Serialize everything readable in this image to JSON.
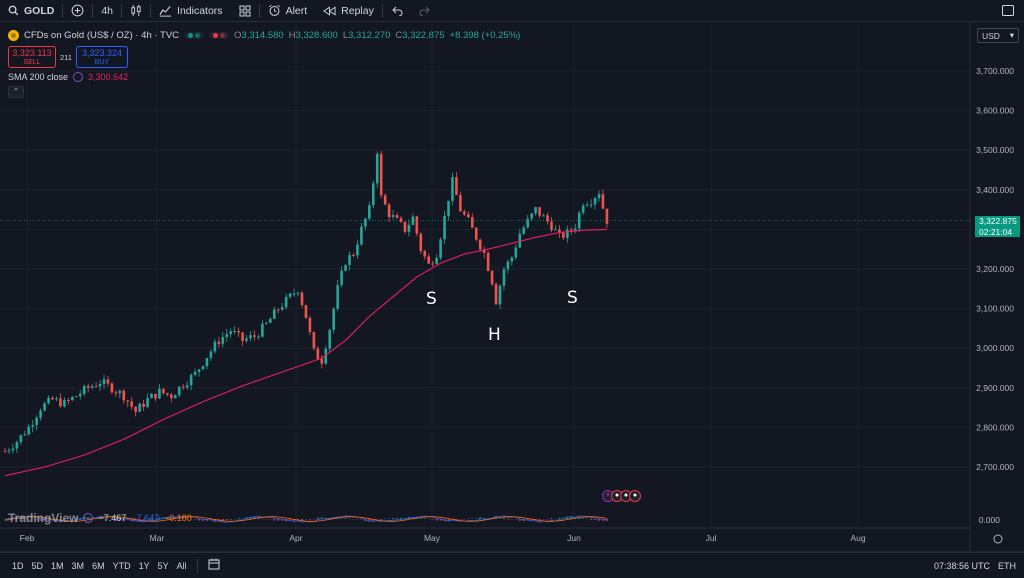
{
  "topbar": {
    "symbol": "GOLD",
    "interval": "4h",
    "indicators_label": "Indicators",
    "alert_label": "Alert",
    "replay_label": "Replay"
  },
  "legend": {
    "title": "CFDs on Gold (US$ / OZ) · 4h · TVC",
    "open_k": "O",
    "open_v": "3,314.580",
    "high_k": "H",
    "high_v": "3,328.600",
    "low_k": "L",
    "low_v": "3,312.270",
    "close_k": "C",
    "close_v": "3,322.875",
    "change": "+8.398 (+0.25%)",
    "sell_price": "3,323.113",
    "sell_label": "SELL",
    "spread": "211",
    "buy_price": "3,323.324",
    "buy_label": "BUY",
    "sma_label": "SMA 200 close",
    "sma_value": "3,300.642"
  },
  "currency": "USD",
  "price_label": {
    "price": "3,322.875",
    "countdown": "02:21:04"
  },
  "annotations": {
    "left_shoulder": "S",
    "head": "H",
    "right_shoulder": "S"
  },
  "oscillator": {
    "watermark": "TradingView",
    "v1": "−7.467",
    "v2": "−7.647",
    "v3": "−0.180",
    "colors": {
      "v1": "#d1d4dc",
      "v2": "#2962ff",
      "v3": "#ff6d00"
    }
  },
  "bottombar": {
    "ranges": [
      "1D",
      "5D",
      "1M",
      "3M",
      "6M",
      "YTD",
      "1Y",
      "5Y",
      "All"
    ],
    "time": "07:38:56 UTC",
    "session": "ETH"
  },
  "colors": {
    "up": "#26a69a",
    "down": "#ef5350",
    "sma": "#e91e63",
    "bg": "#131722",
    "grid": "#1e222d"
  },
  "chart_data": {
    "type": "candlestick",
    "y_ticks": [
      "3,700.000",
      "3,600.000",
      "3,500.000",
      "3,400.000",
      "3,300.000",
      "3,200.000",
      "3,100.000",
      "3,000.000",
      "2,900.000",
      "2,800.000",
      "2,700.000"
    ],
    "y_tick_values": [
      3700,
      3600,
      3500,
      3400,
      3300,
      3200,
      3100,
      3000,
      2900,
      2800,
      2700
    ],
    "osc_tick": "0.000",
    "x_ticks": [
      "Feb",
      "Mar",
      "Apr",
      "May",
      "Jun",
      "Jul",
      "Aug"
    ],
    "price_path": [
      [
        0,
        2740
      ],
      [
        3,
        2765
      ],
      [
        6,
        2800
      ],
      [
        9,
        2850
      ],
      [
        12,
        2870
      ],
      [
        15,
        2860
      ],
      [
        18,
        2880
      ],
      [
        21,
        2900
      ],
      [
        24,
        2915
      ],
      [
        27,
        2900
      ],
      [
        30,
        2880
      ],
      [
        33,
        2840
      ],
      [
        36,
        2870
      ],
      [
        39,
        2890
      ],
      [
        42,
        2880
      ],
      [
        45,
        2910
      ],
      [
        48,
        2935
      ],
      [
        51,
        2980
      ],
      [
        54,
        3020
      ],
      [
        57,
        3045
      ],
      [
        60,
        3020
      ],
      [
        63,
        3030
      ],
      [
        66,
        3060
      ],
      [
        69,
        3100
      ],
      [
        72,
        3130
      ],
      [
        74,
        3150
      ],
      [
        76,
        3080
      ],
      [
        78,
        2990
      ],
      [
        80,
        2970
      ],
      [
        82,
        3050
      ],
      [
        84,
        3150
      ],
      [
        86,
        3220
      ],
      [
        88,
        3240
      ],
      [
        90,
        3300
      ],
      [
        92,
        3350
      ],
      [
        93,
        3420
      ],
      [
        94,
        3500
      ],
      [
        95,
        3380
      ],
      [
        97,
        3340
      ],
      [
        99,
        3320
      ],
      [
        101,
        3300
      ],
      [
        103,
        3330
      ],
      [
        105,
        3250
      ],
      [
        107,
        3210
      ],
      [
        109,
        3240
      ],
      [
        111,
        3330
      ],
      [
        112,
        3380
      ],
      [
        113,
        3420
      ],
      [
        115,
        3350
      ],
      [
        117,
        3320
      ],
      [
        119,
        3280
      ],
      [
        121,
        3240
      ],
      [
        123,
        3170
      ],
      [
        124,
        3120
      ],
      [
        126,
        3200
      ],
      [
        128,
        3230
      ],
      [
        130,
        3290
      ],
      [
        132,
        3320
      ],
      [
        134,
        3350
      ],
      [
        136,
        3330
      ],
      [
        138,
        3310
      ],
      [
        140,
        3280
      ],
      [
        142,
        3290
      ],
      [
        144,
        3310
      ],
      [
        146,
        3370
      ],
      [
        148,
        3375
      ],
      [
        150,
        3395
      ],
      [
        151,
        3355
      ],
      [
        152,
        3323
      ]
    ],
    "sma_path": [
      [
        0,
        2678
      ],
      [
        10,
        2700
      ],
      [
        20,
        2730
      ],
      [
        30,
        2770
      ],
      [
        40,
        2820
      ],
      [
        50,
        2865
      ],
      [
        60,
        2905
      ],
      [
        70,
        2940
      ],
      [
        80,
        2975
      ],
      [
        86,
        3020
      ],
      [
        92,
        3080
      ],
      [
        98,
        3130
      ],
      [
        104,
        3180
      ],
      [
        110,
        3215
      ],
      [
        116,
        3238
      ],
      [
        122,
        3250
      ],
      [
        128,
        3265
      ],
      [
        134,
        3280
      ],
      [
        140,
        3292
      ],
      [
        146,
        3298
      ],
      [
        152,
        3300
      ]
    ]
  }
}
